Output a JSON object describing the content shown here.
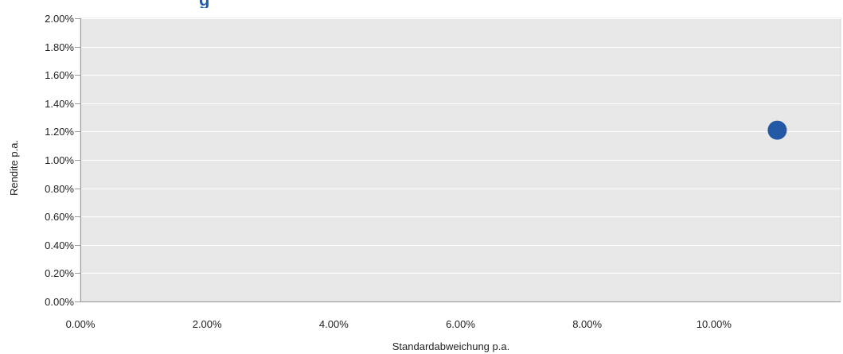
{
  "chart_data": {
    "type": "scatter",
    "title": "",
    "xlabel": "Standardabweichung p.a.",
    "ylabel": "Rendite p.a.",
    "xlim": [
      0,
      12
    ],
    "ylim": [
      0,
      2
    ],
    "x_ticks": [
      0,
      2,
      4,
      6,
      8,
      10
    ],
    "x_tick_labels": [
      "0.00%",
      "2.00%",
      "4.00%",
      "6.00%",
      "8.00%",
      "10.00%"
    ],
    "y_ticks": [
      0,
      0.2,
      0.4,
      0.6,
      0.8,
      1.0,
      1.2,
      1.4,
      1.6,
      1.8,
      2.0
    ],
    "y_tick_labels": [
      "0.00%",
      "0.20%",
      "0.40%",
      "0.60%",
      "0.80%",
      "1.00%",
      "1.20%",
      "1.40%",
      "1.60%",
      "1.80%",
      "2.00%"
    ],
    "grid": true,
    "legend": "none",
    "series": [
      {
        "points": [
          {
            "x": 11.0,
            "y": 1.21
          }
        ]
      }
    ],
    "colors": {
      "point": "#2459a6",
      "plot_background": "#e8e8e8",
      "gridline": "#ffffff",
      "axis": "#9a9a9a"
    }
  }
}
